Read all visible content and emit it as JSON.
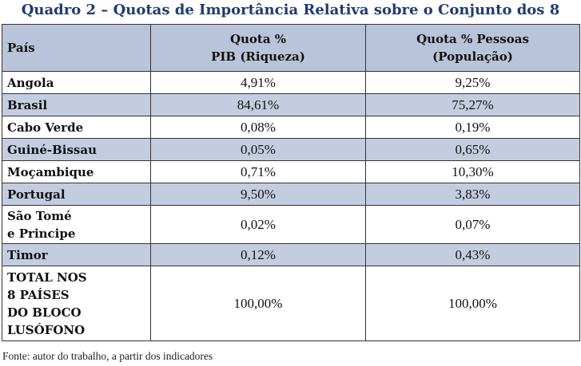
{
  "title": "Quadro 2 – Quotas de Importância Relativa sobre o Conjunto dos 8",
  "table": {
    "headers": {
      "country": "País",
      "gdp_line1": "Quota %",
      "gdp_line2": "PIB (Riqueza)",
      "pop_line1": "Quota % Pessoas",
      "pop_line2": "(População)"
    },
    "rows": [
      {
        "country": "Angola",
        "gdp": "4,91%",
        "pop": "9,25%"
      },
      {
        "country": "Brasil",
        "gdp": "84,61%",
        "pop": "75,27%"
      },
      {
        "country": "Cabo Verde",
        "gdp": "0,08%",
        "pop": "0,19%"
      },
      {
        "country": "Guiné-Bissau",
        "gdp": "0,05%",
        "pop": "0,65%"
      },
      {
        "country": "Moçambique",
        "gdp": "0,71%",
        "pop": "10,30%"
      },
      {
        "country": "Portugal",
        "gdp": "9,50%",
        "pop": "3,83%"
      },
      {
        "country_line1": "São Tomé",
        "country_line2": "e Principe",
        "gdp": "0,02%",
        "pop": "0,07%"
      },
      {
        "country": "Timor",
        "gdp": "0,12%",
        "pop": "0,43%"
      }
    ],
    "total": {
      "label_line1": "TOTAL NOS",
      "label_line2": "8 PAÍSES",
      "label_line3": "DO BLOCO",
      "label_line4": "LUSÓFONO",
      "gdp": "100,00%",
      "pop": "100,00%"
    }
  },
  "source_note": "Fonte: autor do trabalho, a partir dos indicadores"
}
